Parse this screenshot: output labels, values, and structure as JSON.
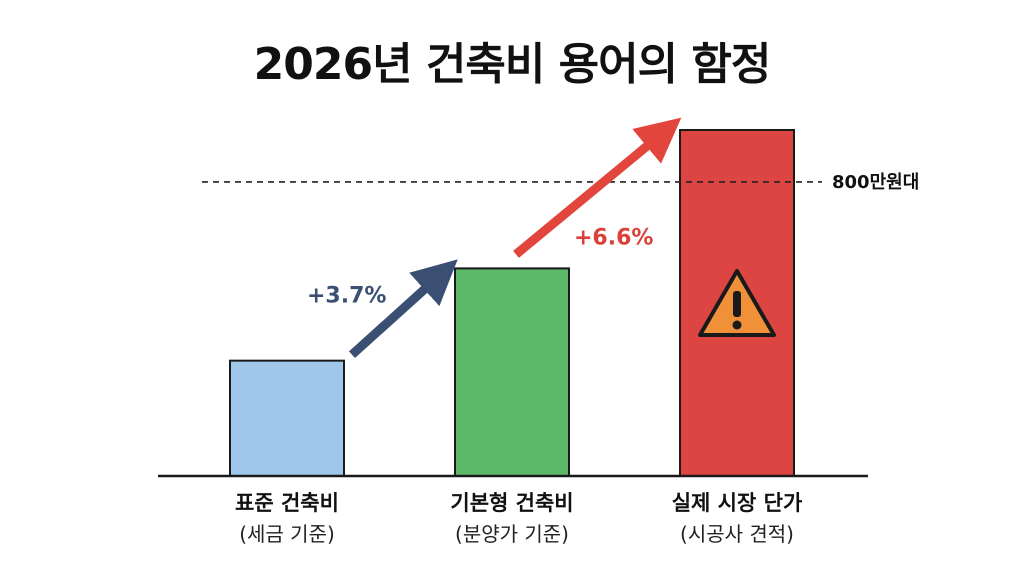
{
  "chart_data": {
    "type": "bar",
    "title": "2026년 건축비 용어의 함정",
    "categories": [
      {
        "label": "표준 건축비",
        "sublabel": "(세금 기준)"
      },
      {
        "label": "기본형 건축비",
        "sublabel": "(분양가 기준)"
      },
      {
        "label": "실제 시장 단가",
        "sublabel": "(시공사 견적)"
      }
    ],
    "values": [
      1.0,
      1.8,
      3.0
    ],
    "ylim": [
      0,
      3.2
    ],
    "bar_colors": [
      "#9fc7ea",
      "#5cb96a",
      "#dc4541"
    ],
    "growth_labels": [
      {
        "text": "+3.7%",
        "color": "#3b4f72"
      },
      {
        "text": "+6.6%",
        "color": "#d9413a"
      }
    ],
    "reference_line": {
      "label": "800만원대",
      "value": 2.55
    },
    "warning_icon": "warning-triangle-icon",
    "xlabel": "",
    "ylabel": ""
  }
}
